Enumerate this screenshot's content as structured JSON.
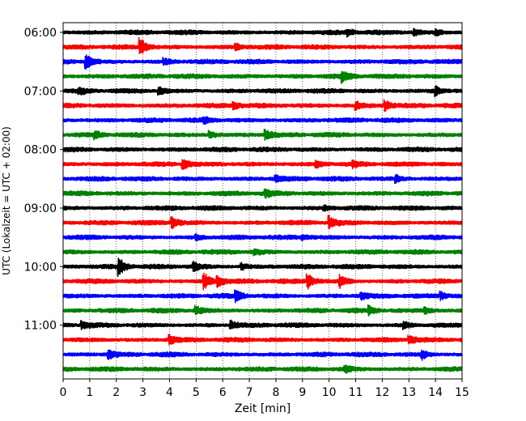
{
  "chart_data": {
    "type": "line",
    "title": "",
    "xlabel": "Zeit  [min]",
    "ylabel": "UTC (Lokalzeit = UTC + 02:00)",
    "xlim": [
      0,
      15
    ],
    "x_ticks": [
      "0",
      "1",
      "2",
      "3",
      "4",
      "5",
      "6",
      "7",
      "8",
      "9",
      "10",
      "11",
      "12",
      "13",
      "14",
      "15"
    ],
    "y_ticks": [
      "06:00",
      "07:00",
      "08:00",
      "09:00",
      "10:00",
      "11:00"
    ],
    "grid": "vertical dotted at each minute",
    "trace_colors": [
      "#000000",
      "#ff0000",
      "#0000ff",
      "#008000"
    ],
    "series": [
      {
        "start": "06:00",
        "color": "#000000"
      },
      {
        "start": "06:15",
        "color": "#ff0000"
      },
      {
        "start": "06:30",
        "color": "#0000ff"
      },
      {
        "start": "06:45",
        "color": "#008000"
      },
      {
        "start": "07:00",
        "color": "#000000"
      },
      {
        "start": "07:15",
        "color": "#ff0000"
      },
      {
        "start": "07:30",
        "color": "#0000ff"
      },
      {
        "start": "07:45",
        "color": "#008000"
      },
      {
        "start": "08:00",
        "color": "#000000"
      },
      {
        "start": "08:15",
        "color": "#ff0000"
      },
      {
        "start": "08:30",
        "color": "#0000ff"
      },
      {
        "start": "08:45",
        "color": "#008000"
      },
      {
        "start": "09:00",
        "color": "#000000"
      },
      {
        "start": "09:15",
        "color": "#ff0000"
      },
      {
        "start": "09:30",
        "color": "#0000ff"
      },
      {
        "start": "09:45",
        "color": "#008000"
      },
      {
        "start": "10:00",
        "color": "#000000"
      },
      {
        "start": "10:15",
        "color": "#ff0000"
      },
      {
        "start": "10:30",
        "color": "#0000ff"
      },
      {
        "start": "10:45",
        "color": "#008000"
      },
      {
        "start": "11:00",
        "color": "#000000"
      },
      {
        "start": "11:15",
        "color": "#ff0000"
      },
      {
        "start": "11:30",
        "color": "#0000ff"
      },
      {
        "start": "11:45",
        "color": "#008000"
      }
    ],
    "events": [
      {
        "row": 0,
        "t": 10.7,
        "amp": 0.35
      },
      {
        "row": 0,
        "t": 13.2,
        "amp": 0.3
      },
      {
        "row": 0,
        "t": 14.0,
        "amp": 0.35
      },
      {
        "row": 1,
        "t": 2.9,
        "amp": 1.0
      },
      {
        "row": 1,
        "t": 6.5,
        "amp": 0.35
      },
      {
        "row": 2,
        "t": 0.85,
        "amp": 0.9
      },
      {
        "row": 2,
        "t": 3.8,
        "amp": 0.3
      },
      {
        "row": 3,
        "t": 10.5,
        "amp": 0.6
      },
      {
        "row": 4,
        "t": 0.6,
        "amp": 0.35
      },
      {
        "row": 4,
        "t": 3.6,
        "amp": 0.4
      },
      {
        "row": 4,
        "t": 14.0,
        "amp": 0.5
      },
      {
        "row": 5,
        "t": 6.4,
        "amp": 0.5
      },
      {
        "row": 5,
        "t": 11.0,
        "amp": 0.5
      },
      {
        "row": 5,
        "t": 12.1,
        "amp": 0.6
      },
      {
        "row": 6,
        "t": 5.3,
        "amp": 0.3
      },
      {
        "row": 7,
        "t": 1.2,
        "amp": 0.35
      },
      {
        "row": 7,
        "t": 5.5,
        "amp": 0.45
      },
      {
        "row": 7,
        "t": 7.6,
        "amp": 0.55
      },
      {
        "row": 9,
        "t": 4.5,
        "amp": 0.6
      },
      {
        "row": 9,
        "t": 9.5,
        "amp": 0.5
      },
      {
        "row": 9,
        "t": 10.9,
        "amp": 0.3
      },
      {
        "row": 10,
        "t": 8.0,
        "amp": 0.35
      },
      {
        "row": 10,
        "t": 12.5,
        "amp": 0.4
      },
      {
        "row": 11,
        "t": 7.6,
        "amp": 0.4
      },
      {
        "row": 12,
        "t": 9.8,
        "amp": 0.3
      },
      {
        "row": 13,
        "t": 4.1,
        "amp": 0.7
      },
      {
        "row": 13,
        "t": 10.0,
        "amp": 0.7
      },
      {
        "row": 14,
        "t": 5.0,
        "amp": 0.3
      },
      {
        "row": 14,
        "t": 9.0,
        "amp": 0.3
      },
      {
        "row": 15,
        "t": 7.2,
        "amp": 0.35
      },
      {
        "row": 16,
        "t": 2.1,
        "amp": 1.0
      },
      {
        "row": 16,
        "t": 4.9,
        "amp": 0.6
      },
      {
        "row": 16,
        "t": 6.7,
        "amp": 0.4
      },
      {
        "row": 17,
        "t": 5.3,
        "amp": 1.0
      },
      {
        "row": 17,
        "t": 5.8,
        "amp": 0.7
      },
      {
        "row": 17,
        "t": 9.2,
        "amp": 0.8
      },
      {
        "row": 17,
        "t": 10.4,
        "amp": 0.7
      },
      {
        "row": 18,
        "t": 6.5,
        "amp": 0.6
      },
      {
        "row": 18,
        "t": 11.2,
        "amp": 0.4
      },
      {
        "row": 18,
        "t": 14.2,
        "amp": 0.4
      },
      {
        "row": 19,
        "t": 5.0,
        "amp": 0.45
      },
      {
        "row": 19,
        "t": 11.5,
        "amp": 0.4
      },
      {
        "row": 19,
        "t": 13.6,
        "amp": 0.4
      },
      {
        "row": 20,
        "t": 0.7,
        "amp": 0.4
      },
      {
        "row": 20,
        "t": 6.3,
        "amp": 0.5
      },
      {
        "row": 20,
        "t": 12.8,
        "amp": 0.4
      },
      {
        "row": 21,
        "t": 4.0,
        "amp": 0.5
      },
      {
        "row": 21,
        "t": 13.0,
        "amp": 0.5
      },
      {
        "row": 22,
        "t": 1.7,
        "amp": 0.5
      },
      {
        "row": 22,
        "t": 13.5,
        "amp": 0.5
      },
      {
        "row": 23,
        "t": 10.6,
        "amp": 0.35
      }
    ]
  }
}
